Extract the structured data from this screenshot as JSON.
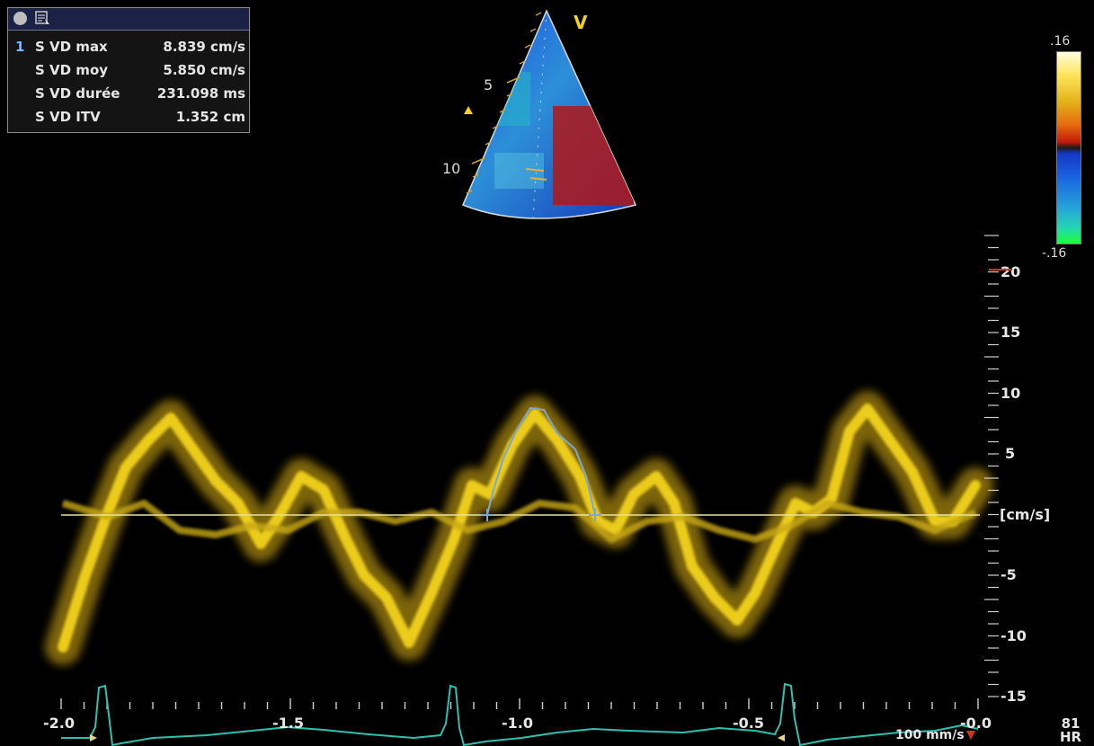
{
  "measurement": {
    "index": "1",
    "rows": [
      {
        "label": "S VD max",
        "value": "8.839 cm/s"
      },
      {
        "label": "S VD moy",
        "value": "5.850 cm/s"
      },
      {
        "label": "S VD durée",
        "value": "231.098 ms"
      },
      {
        "label": "S VD ITV",
        "value": "1.352 cm"
      }
    ]
  },
  "sector": {
    "marker": "V",
    "depth_labels": [
      "5",
      "10"
    ]
  },
  "colorbar": {
    "top_label": ".16",
    "bottom_label": "-.16"
  },
  "doppler": {
    "unit": "[cm/s]",
    "velocity_ticks": [
      "20",
      "15",
      "10",
      "5",
      "-5",
      "-10",
      "-15"
    ],
    "time_ticks": [
      "-2.0",
      "-1.5",
      "-1.0",
      "-0.5",
      "-0.0"
    ],
    "sweep_speed": "100 mm/s",
    "heart_rate": "81",
    "heart_rate_label": "HR"
  },
  "colors": {
    "spectrum": "#f2d21c",
    "baseline": "#e8e2a0",
    "trace": "#7aa6d8",
    "ecg": "#2fc0b0",
    "axis": "#d9d9d9",
    "panel_header": "#1b2246"
  },
  "icons": [
    "record-icon",
    "measure-tool-icon",
    "direction-arrow-icon"
  ]
}
